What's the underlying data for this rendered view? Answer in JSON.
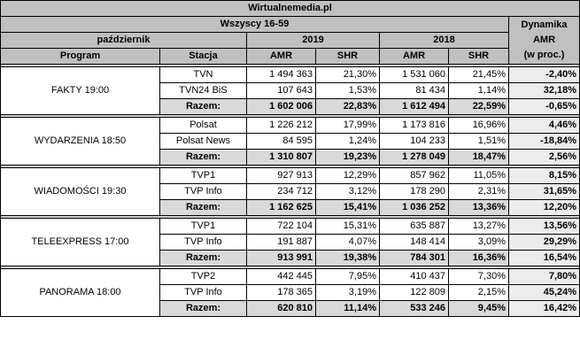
{
  "header": {
    "site": "Wirtualnemedia.pl",
    "group": "Wszyscy 16-59",
    "month": "październik",
    "year_a": "2019",
    "year_b": "2018",
    "dyn_line1": "Dynamika",
    "dyn_line2": "AMR",
    "dyn_line3": "(w proc.)",
    "col_program": "Program",
    "col_station": "Stacja",
    "col_amr": "AMR",
    "col_shr": "SHR"
  },
  "programs": [
    {
      "name": "FAKTY 19:00",
      "rows": [
        {
          "station": "TVN",
          "amr19": "1 494 363",
          "shr19": "21,30%",
          "amr18": "1 531 060",
          "shr18": "21,45%",
          "dyn": "-2,40%"
        },
        {
          "station": "TVN24 BiS",
          "amr19": "107 643",
          "shr19": "1,53%",
          "amr18": "81 434",
          "shr18": "1,14%",
          "dyn": "32,18%"
        },
        {
          "station": "Razem:",
          "amr19": "1 602 006",
          "shr19": "22,83%",
          "amr18": "1 612 494",
          "shr18": "22,59%",
          "dyn": "-0,65%"
        }
      ]
    },
    {
      "name": "WYDARZENIA 18:50",
      "rows": [
        {
          "station": "Polsat",
          "amr19": "1 226 212",
          "shr19": "17,99%",
          "amr18": "1 173 816",
          "shr18": "16,96%",
          "dyn": "4,46%"
        },
        {
          "station": "Polsat News",
          "amr19": "84 595",
          "shr19": "1,24%",
          "amr18": "104 233",
          "shr18": "1,51%",
          "dyn": "-18,84%"
        },
        {
          "station": "Razem:",
          "amr19": "1 310 807",
          "shr19": "19,23%",
          "amr18": "1 278 049",
          "shr18": "18,47%",
          "dyn": "2,56%"
        }
      ]
    },
    {
      "name": "WIADOMOŚCI 19:30",
      "rows": [
        {
          "station": "TVP1",
          "amr19": "927 913",
          "shr19": "12,29%",
          "amr18": "857 962",
          "shr18": "11,05%",
          "dyn": "8,15%"
        },
        {
          "station": "TVP Info",
          "amr19": "234 712",
          "shr19": "3,12%",
          "amr18": "178 290",
          "shr18": "2,31%",
          "dyn": "31,65%"
        },
        {
          "station": "Razem:",
          "amr19": "1 162 625",
          "shr19": "15,41%",
          "amr18": "1 036 252",
          "shr18": "13,36%",
          "dyn": "12,20%"
        }
      ]
    },
    {
      "name": "TELEEXPRESS 17:00",
      "rows": [
        {
          "station": "TVP1",
          "amr19": "722 104",
          "shr19": "15,31%",
          "amr18": "635 887",
          "shr18": "13,27%",
          "dyn": "13,56%"
        },
        {
          "station": "TVP Info",
          "amr19": "191 887",
          "shr19": "4,07%",
          "amr18": "148 414",
          "shr18": "3,09%",
          "dyn": "29,29%"
        },
        {
          "station": "Razem:",
          "amr19": "913 991",
          "shr19": "19,38%",
          "amr18": "784 301",
          "shr18": "16,36%",
          "dyn": "16,54%"
        }
      ]
    },
    {
      "name": "PANORAMA 18:00",
      "rows": [
        {
          "station": "TVP2",
          "amr19": "442 445",
          "shr19": "7,95%",
          "amr18": "410 437",
          "shr18": "7,30%",
          "dyn": "7,80%"
        },
        {
          "station": "TVP Info",
          "amr19": "178 365",
          "shr19": "3,19%",
          "amr18": "122 809",
          "shr18": "2,15%",
          "dyn": "45,24%"
        },
        {
          "station": "Razem:",
          "amr19": "620 810",
          "shr19": "11,14%",
          "amr18": "533 246",
          "shr18": "9,45%",
          "dyn": "16,42%"
        }
      ]
    }
  ]
}
